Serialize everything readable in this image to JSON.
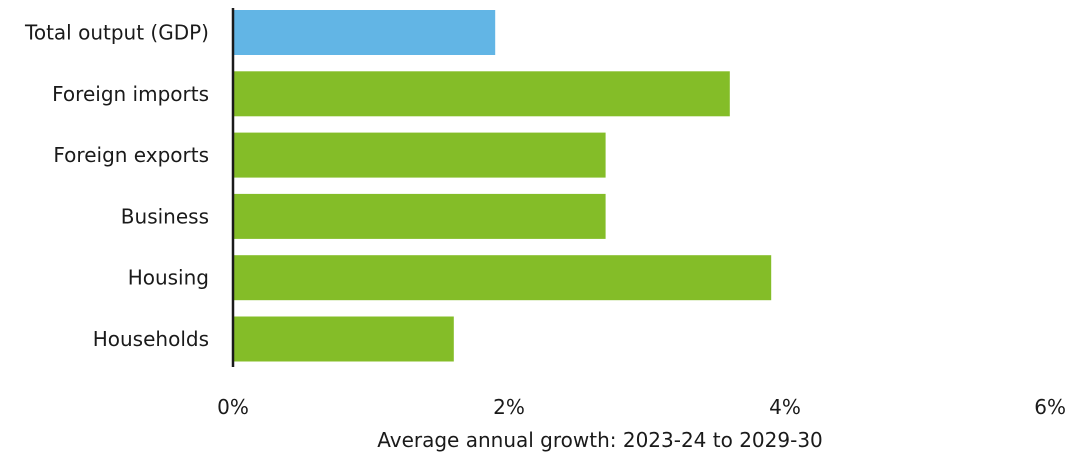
{
  "chart_data": {
    "type": "bar",
    "orientation": "horizontal",
    "categories": [
      "Total output (GDP)",
      "Foreign imports",
      "Foreign exports",
      "Business",
      "Housing",
      "Households"
    ],
    "values": [
      1.9,
      3.6,
      2.7,
      2.7,
      3.9,
      1.6
    ],
    "highlight_category": "Total output (GDP)",
    "xlabel": "Average annual growth: 2023-24 to 2029-30",
    "xlim": [
      0,
      6
    ],
    "xticks": [
      0,
      2,
      4,
      6
    ],
    "xtick_labels": [
      "0%",
      "2%",
      "4%",
      "6%"
    ],
    "grid": false,
    "legend": "none",
    "colors": {
      "highlight": "#62b5e5",
      "default": "#84bd28",
      "axis": "#1a1a1a"
    }
  }
}
